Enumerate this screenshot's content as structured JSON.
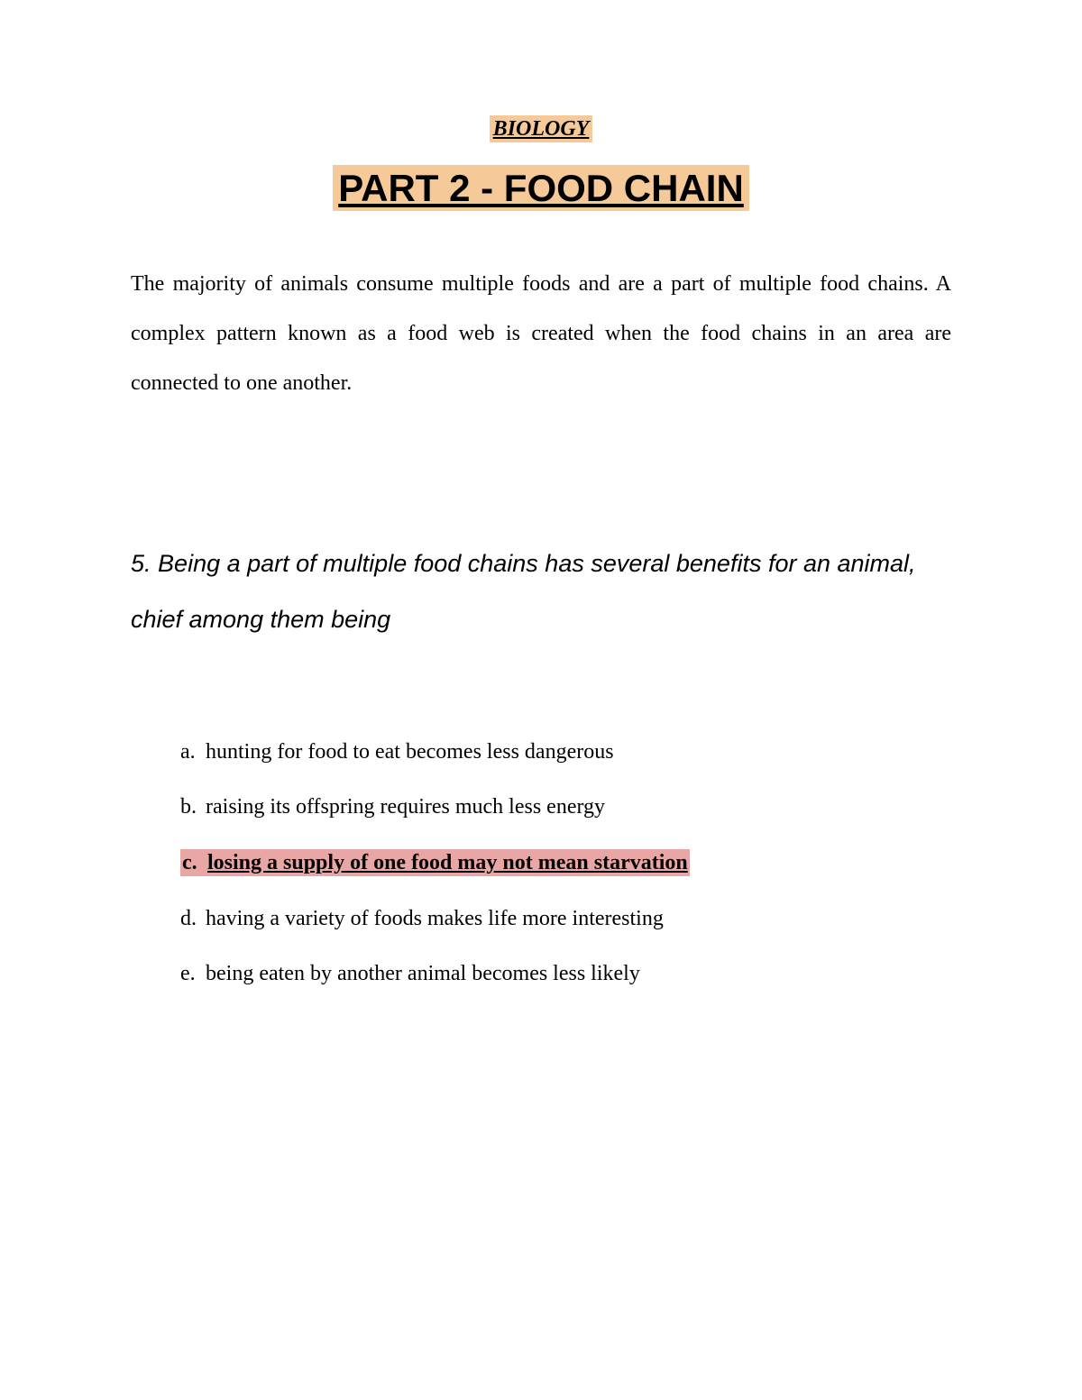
{
  "header": {
    "subject": "BIOLOGY",
    "part_title": "PART 2 - FOOD CHAIN"
  },
  "intro": "The majority of animals consume multiple foods and are a part of multiple food chains. A complex pattern known as a food web is created when the food chains in an area are connected to one another.",
  "question": {
    "number": "5.",
    "text": "Being a part of multiple food chains has several benefits for an animal, chief among them being"
  },
  "options": {
    "a": {
      "marker": "a.",
      "text": "hunting for food to eat becomes less dangerous"
    },
    "b": {
      "marker": "b.",
      "text": "raising its offspring requires much less energy"
    },
    "c": {
      "marker": "c.",
      "text": "losing a supply of one food may not mean starvation"
    },
    "d": {
      "marker": "d.",
      "text": "having a variety of foods makes life more interesting"
    },
    "e": {
      "marker": "e.",
      "text": "being eaten by another animal becomes less likely"
    }
  },
  "colors": {
    "highlight_orange": "#f6c999",
    "highlight_pink": "#e8a7a4",
    "background": "#ffffff",
    "text": "#000000"
  }
}
